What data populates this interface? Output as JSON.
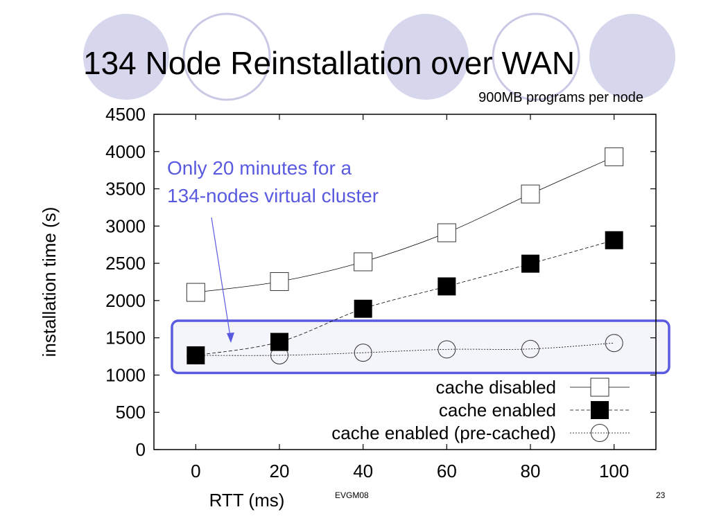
{
  "slide": {
    "title": "134 Node Reinstallation over WAN",
    "subtitle": "900MB programs per node",
    "footer_left": "EVGM08",
    "page_number": "23",
    "colors": {
      "circle_fill": "#d6d6ec",
      "circle_stroke": "#b3b3d9",
      "highlight_border": "#5a5ae0",
      "highlight_fill": "#f4f4fb",
      "annotation": "#5a5ae0"
    }
  },
  "chart_data": {
    "type": "line",
    "xlabel": "RTT (ms)",
    "ylabel": "installation time (s)",
    "x": [
      0,
      20,
      40,
      60,
      80,
      100
    ],
    "xlim": [
      -10,
      110
    ],
    "ylim": [
      0,
      4500
    ],
    "xticks": [
      "0",
      "20",
      "40",
      "60",
      "80",
      "100"
    ],
    "yticks": [
      "0",
      "500",
      "1000",
      "1500",
      "2000",
      "2500",
      "3000",
      "3500",
      "4000",
      "4500"
    ],
    "grid": false,
    "legend_position": "bottom-right",
    "series": [
      {
        "name": "cache disabled",
        "values": [
          2110,
          2255,
          2520,
          2910,
          3430,
          3930
        ],
        "marker": "open-square",
        "line": "solid"
      },
      {
        "name": "cache enabled",
        "values": [
          1265,
          1445,
          1890,
          2190,
          2495,
          2810
        ],
        "marker": "filled-square",
        "line": "dashed"
      },
      {
        "name": "cache enabled (pre-cached)",
        "values": [
          1265,
          1265,
          1300,
          1345,
          1350,
          1430
        ],
        "marker": "open-circle",
        "line": "dotted"
      }
    ],
    "annotation": {
      "lines": [
        "Only 20 minutes for a",
        "134-nodes virtual cluster"
      ],
      "highlight_y_range": [
        1270,
        1450
      ]
    }
  }
}
